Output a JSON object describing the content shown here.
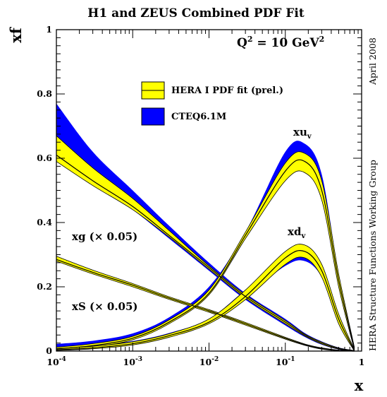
{
  "chart_data": {
    "type": "area",
    "title": "H1 and ZEUS Combined PDF Fit",
    "xlabel": "x",
    "ylabel": "xf",
    "xscale": "log",
    "xlim": [
      0.0001,
      1
    ],
    "ylim": [
      0,
      1
    ],
    "x_tick_labels": [
      "10^-4",
      "10^-3",
      "10^-2",
      "10^-1",
      "1"
    ],
    "y_tick_labels": [
      "0",
      "0.2",
      "0.4",
      "0.6",
      "0.8",
      "1"
    ],
    "y_ticks": [
      0,
      0.2,
      0.4,
      0.6,
      0.8,
      1
    ],
    "scale_label": "Q^2 = 10 GeV^2",
    "side_text_top": "April 2008",
    "side_text_bottom": "HERA Structure Functions Working Group",
    "legend_position": "top-center",
    "legend": [
      {
        "name": "HERA I PDF fit (prel.)",
        "color": "#ffff00"
      },
      {
        "name": "CTEQ6.1M",
        "color": "#0000ff"
      }
    ],
    "annotations": {
      "xuv": {
        "main": "xu",
        "sub": "v"
      },
      "xdv": {
        "main": "xd",
        "sub": "v"
      },
      "xg": "xg (× 0.05)",
      "xS": "xS (× 0.05)"
    },
    "x": [
      0.0001,
      0.0003,
      0.001,
      0.003,
      0.01,
      0.03,
      0.1,
      0.18,
      0.3,
      0.5,
      0.8
    ],
    "series": [
      {
        "name": "xg (× 0.05)",
        "kind": "HERA",
        "color": "#ffff00",
        "values": [
          0.61,
          0.53,
          0.45,
          0.36,
          0.26,
          0.17,
          0.09,
          0.05,
          0.025,
          0.008,
          0.001
        ],
        "lower": [
          0.59,
          0.515,
          0.44,
          0.355,
          0.255,
          0.165,
          0.085,
          0.047,
          0.022,
          0.006,
          0.0
        ],
        "upper": [
          0.67,
          0.57,
          0.475,
          0.375,
          0.265,
          0.175,
          0.095,
          0.053,
          0.028,
          0.01,
          0.002
        ]
      },
      {
        "name": "xg (× 0.05)",
        "kind": "CTEQ6.1M",
        "color": "#0000ff",
        "lower": [
          0.62,
          0.53,
          0.44,
          0.35,
          0.25,
          0.16,
          0.08,
          0.044,
          0.02,
          0.005,
          0.0
        ],
        "upper": [
          0.77,
          0.62,
          0.5,
          0.39,
          0.275,
          0.18,
          0.1,
          0.056,
          0.03,
          0.011,
          0.002
        ]
      },
      {
        "name": "xS (× 0.05)",
        "kind": "HERA",
        "color": "#ffff00",
        "values": [
          0.285,
          0.245,
          0.205,
          0.165,
          0.125,
          0.085,
          0.04,
          0.02,
          0.008,
          0.002,
          0.0
        ],
        "lower": [
          0.28,
          0.24,
          0.2,
          0.161,
          0.121,
          0.081,
          0.037,
          0.018,
          0.006,
          0.001,
          0.0
        ],
        "upper": [
          0.295,
          0.252,
          0.21,
          0.169,
          0.129,
          0.089,
          0.043,
          0.022,
          0.01,
          0.003,
          0.001
        ]
      },
      {
        "name": "xS (× 0.05)",
        "kind": "CTEQ6.1M",
        "color": "#0000ff",
        "lower": [
          0.283,
          0.243,
          0.203,
          0.163,
          0.123,
          0.083,
          0.038,
          0.019,
          0.007,
          0.0015,
          0.0
        ],
        "upper": [
          0.289,
          0.249,
          0.208,
          0.167,
          0.127,
          0.087,
          0.042,
          0.021,
          0.009,
          0.0025,
          0.0005
        ]
      },
      {
        "name": "xu_v",
        "kind": "HERA",
        "color": "#ffff00",
        "values": [
          0.007,
          0.017,
          0.04,
          0.09,
          0.18,
          0.36,
          0.56,
          0.59,
          0.5,
          0.22,
          0.01
        ],
        "lower": [
          0.004,
          0.013,
          0.035,
          0.085,
          0.175,
          0.35,
          0.53,
          0.555,
          0.47,
          0.2,
          0.005
        ],
        "upper": [
          0.012,
          0.023,
          0.046,
          0.097,
          0.19,
          0.37,
          0.585,
          0.615,
          0.53,
          0.24,
          0.014
        ]
      },
      {
        "name": "xu_v",
        "kind": "CTEQ6.1M",
        "color": "#0000ff",
        "lower": [
          0.006,
          0.015,
          0.038,
          0.09,
          0.18,
          0.35,
          0.58,
          0.6,
          0.49,
          0.2,
          0.005
        ],
        "upper": [
          0.022,
          0.032,
          0.055,
          0.105,
          0.2,
          0.37,
          0.62,
          0.645,
          0.55,
          0.24,
          0.014
        ]
      },
      {
        "name": "xd_v",
        "kind": "HERA",
        "color": "#ffff00",
        "values": [
          0.004,
          0.01,
          0.023,
          0.048,
          0.09,
          0.17,
          0.29,
          0.31,
          0.25,
          0.1,
          0.003
        ],
        "lower": [
          0.002,
          0.007,
          0.019,
          0.043,
          0.085,
          0.16,
          0.27,
          0.29,
          0.23,
          0.085,
          0.001
        ],
        "upper": [
          0.008,
          0.015,
          0.029,
          0.054,
          0.1,
          0.19,
          0.31,
          0.33,
          0.27,
          0.115,
          0.006
        ]
      },
      {
        "name": "xd_v",
        "kind": "CTEQ6.1M",
        "color": "#0000ff",
        "lower": [
          0.003,
          0.009,
          0.021,
          0.046,
          0.085,
          0.17,
          0.265,
          0.28,
          0.23,
          0.09,
          0.002
        ],
        "upper": [
          0.01,
          0.017,
          0.031,
          0.056,
          0.1,
          0.19,
          0.285,
          0.3,
          0.25,
          0.105,
          0.005
        ]
      }
    ]
  }
}
